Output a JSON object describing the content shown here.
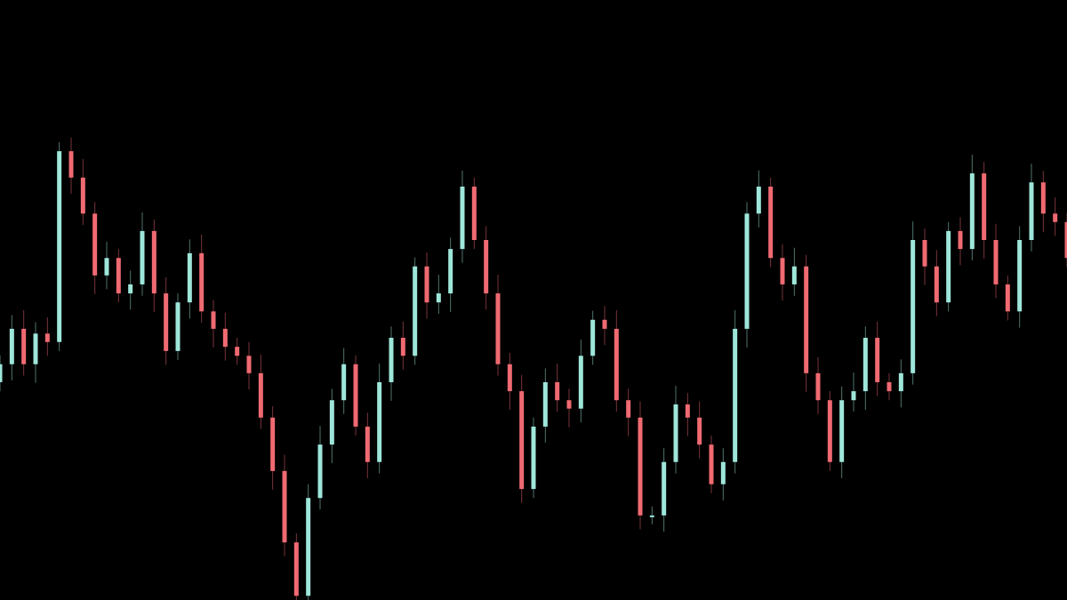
{
  "chart_data": {
    "type": "candlestick",
    "title": "",
    "xlabel": "",
    "ylabel": "",
    "axes_visible": false,
    "grid": false,
    "background": "#000000",
    "colors": {
      "up": "#9ee6da",
      "down": "#f06a72"
    },
    "ylim": [
      0,
      100
    ],
    "closes": [
      39.3,
      45.2,
      39.3,
      44.4,
      43.0,
      74.8,
      70.4,
      64.4,
      54.1,
      57.0,
      51.1,
      52.6,
      61.5,
      51.1,
      41.5,
      49.6,
      57.8,
      48.1,
      45.2,
      42.2,
      40.7,
      37.8,
      30.4,
      21.5,
      9.6,
      0.7,
      17.0,
      25.9,
      33.3,
      39.3,
      28.9,
      23.0,
      36.3,
      43.7,
      40.7,
      55.6,
      49.6,
      51.1,
      58.5,
      68.9,
      60.0,
      51.1,
      39.3,
      34.8,
      18.5,
      28.9,
      36.3,
      33.3,
      31.9,
      40.7,
      46.7,
      45.2,
      33.3,
      30.4,
      14.1,
      14.1,
      23.0,
      32.6,
      30.4,
      25.9,
      19.3,
      23.0,
      45.2,
      64.4,
      68.9,
      57.0,
      52.6,
      55.6,
      37.8,
      33.3,
      23.0,
      33.3,
      34.8,
      43.7,
      36.3,
      34.8,
      37.8,
      60.0,
      55.6,
      49.6,
      61.5,
      58.5,
      71.1,
      60.0,
      52.6,
      48.1,
      60.0,
      69.6,
      64.4,
      63.0,
      57.0
    ]
  }
}
